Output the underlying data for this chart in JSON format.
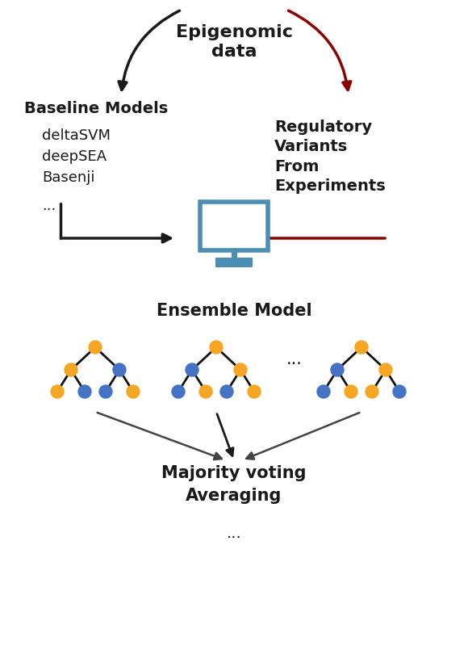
{
  "title": "Epigenomic\ndata",
  "baseline_models_title": "Baseline Models",
  "baseline_models_list": [
    "deltaSVM",
    "deepSEA",
    "Basenji"
  ],
  "regulatory_title": "Regulatory\nVariants\nFrom\nExperiments",
  "ensemble_model_title": "Ensemble Model",
  "majority_voting_text": "Majority voting\nAveraging",
  "dots_text": "...",
  "arrow_black": "#1a1a1a",
  "arrow_red": "#8B0000",
  "monitor_blue": "#4A8DB5",
  "node_blue": "#4472C4",
  "node_orange": "#F5A623",
  "bg_color": "#ffffff",
  "text_color": "#1a1a1a",
  "fig_width": 5.8,
  "fig_height": 8.0,
  "dpi": 100
}
